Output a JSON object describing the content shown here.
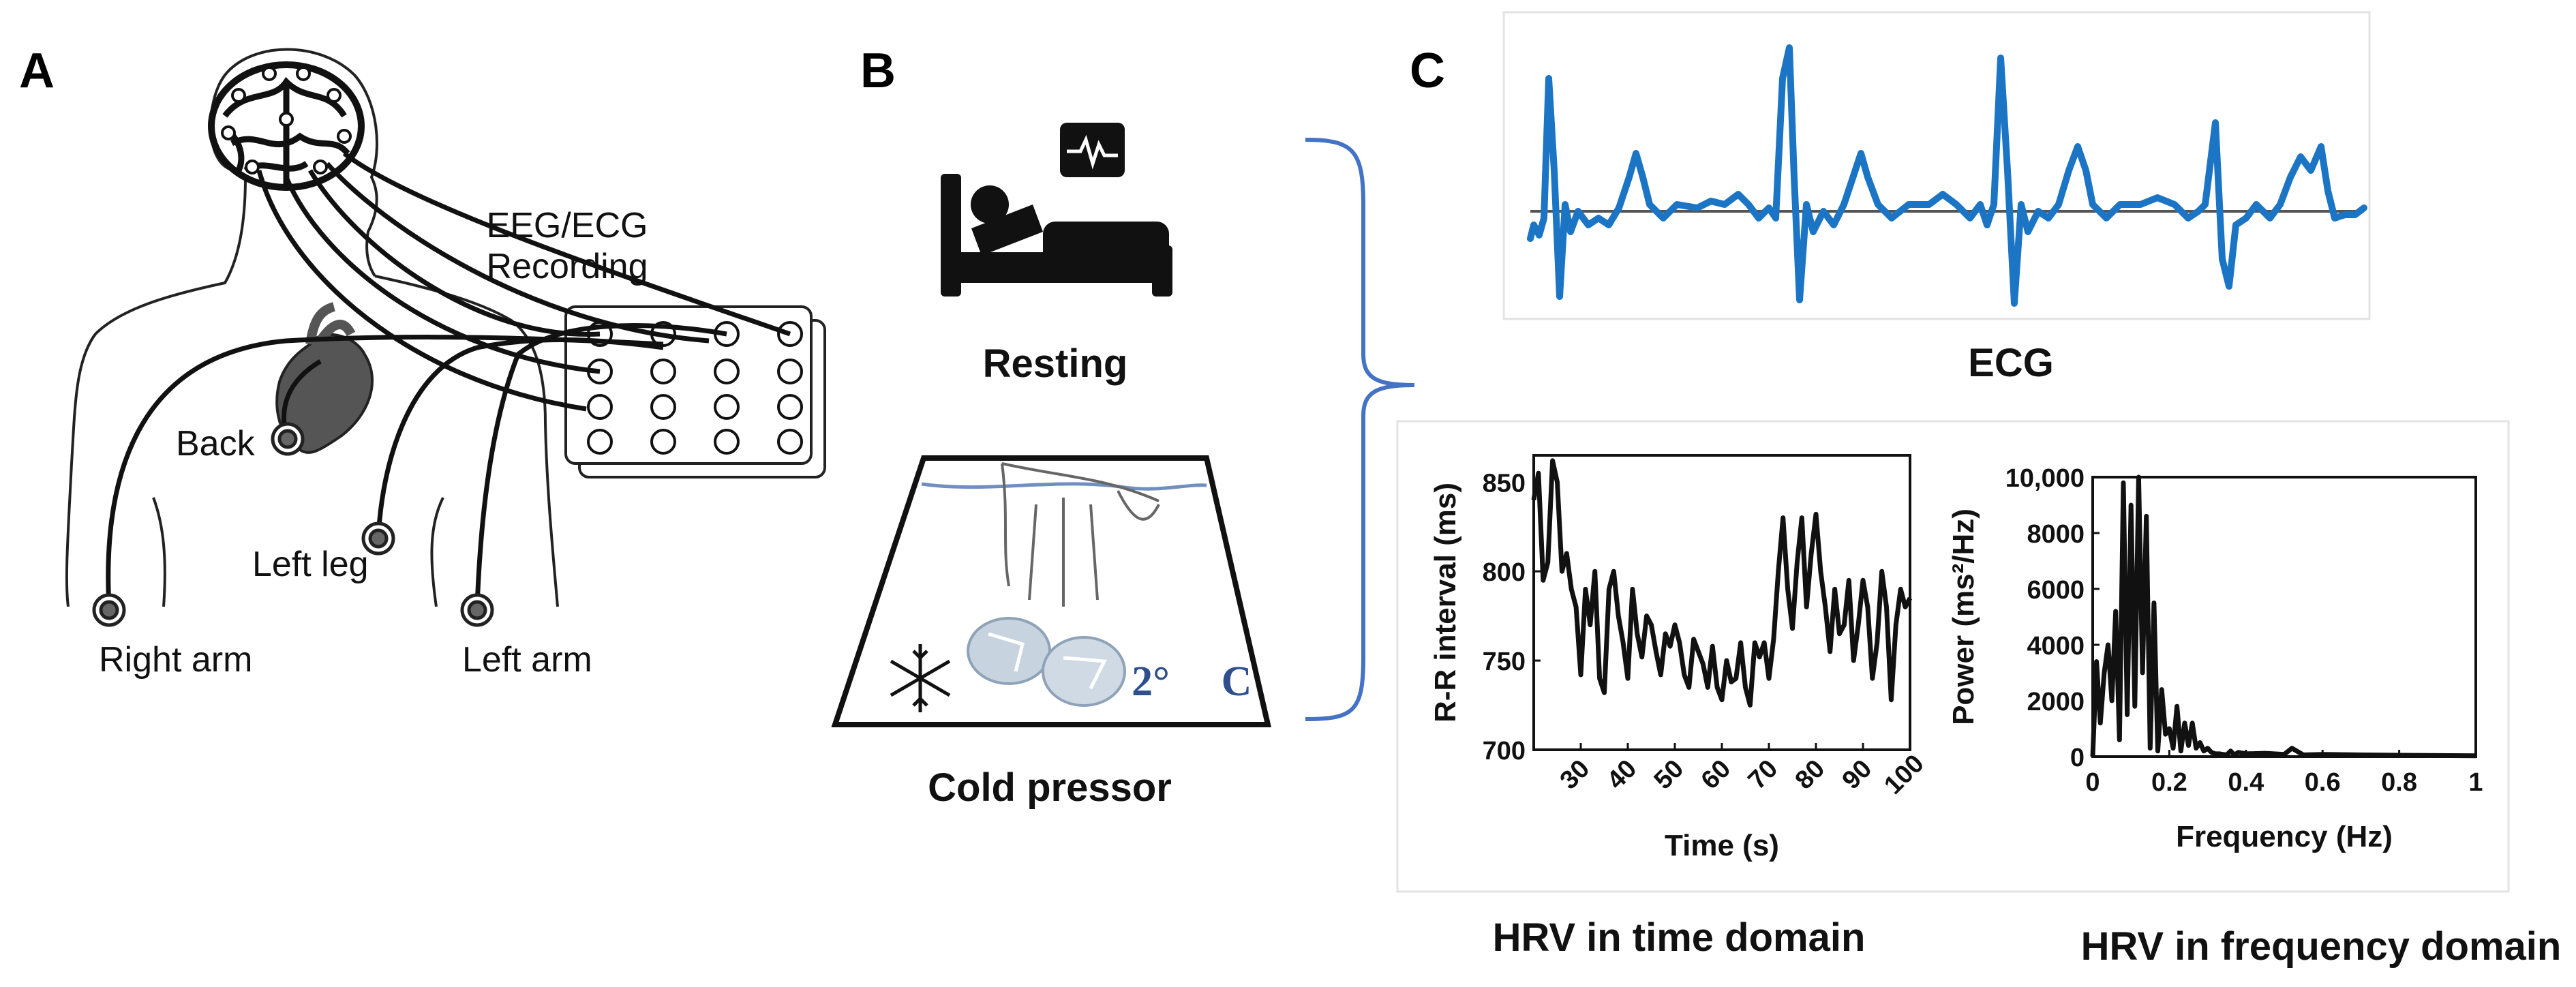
{
  "panels": {
    "a": {
      "letter": "A"
    },
    "b": {
      "letter": "B"
    },
    "c": {
      "letter": "C"
    }
  },
  "recording": {
    "line1": "EEG/ECG",
    "line2": "Recording"
  },
  "electrodes": {
    "back": "Back",
    "left_leg": "Left leg",
    "right_arm": "Right arm",
    "left_arm": "Left arm"
  },
  "conditions": {
    "resting": "Resting",
    "cold_pressor": "Cold pressor",
    "temperature_value": "2°",
    "temperature_unit": "C"
  },
  "labels": {
    "ecg": "ECG",
    "hrv_time": "HRV in time domain",
    "hrv_freq": "HRV in frequency domain"
  },
  "colors": {
    "ecg_line": "#1b75c4",
    "bracket": "#4472c4",
    "water": "#6f8fbf",
    "temperature": "#2f4e8c",
    "heart": "#555555"
  },
  "chart_data": [
    {
      "type": "line",
      "title": "HRV in time domain",
      "xlabel": "Time (s)",
      "ylabel": "R-R interval (ms)",
      "xlim": [
        20,
        100
      ],
      "ylim": [
        700,
        865
      ],
      "xticks": [
        "30",
        "40",
        "50",
        "60",
        "70",
        "80",
        "90",
        "100"
      ],
      "yticks": [
        "700",
        "750",
        "800",
        "850"
      ],
      "x": [
        20,
        21,
        22,
        23,
        24,
        25,
        26,
        27,
        28,
        29,
        30,
        31,
        32,
        33,
        34,
        35,
        36,
        37,
        38,
        39,
        40,
        41,
        42,
        43,
        44,
        45,
        46,
        47,
        48,
        49,
        50,
        51,
        52,
        53,
        54,
        55,
        56,
        57,
        58,
        59,
        60,
        61,
        62,
        63,
        64,
        65,
        66,
        67,
        68,
        69,
        70,
        71,
        72,
        73,
        74,
        75,
        76,
        77,
        78,
        79,
        80,
        81,
        82,
        83,
        84,
        85,
        86,
        87,
        88,
        89,
        90,
        91,
        92,
        93,
        94,
        95,
        96,
        97,
        98,
        99,
        100
      ],
      "y": [
        840,
        855,
        795,
        805,
        862,
        850,
        800,
        810,
        790,
        780,
        742,
        790,
        770,
        800,
        740,
        732,
        790,
        800,
        775,
        760,
        740,
        790,
        765,
        752,
        775,
        770,
        755,
        742,
        765,
        758,
        770,
        760,
        742,
        735,
        762,
        755,
        748,
        735,
        758,
        735,
        728,
        750,
        738,
        740,
        760,
        735,
        725,
        760,
        752,
        760,
        740,
        762,
        800,
        830,
        790,
        768,
        805,
        830,
        780,
        810,
        832,
        800,
        780,
        755,
        790,
        765,
        770,
        795,
        750,
        770,
        795,
        780,
        740,
        760,
        800,
        780,
        728,
        770,
        790,
        780,
        785
      ]
    },
    {
      "type": "line",
      "title": "HRV in frequency domain",
      "xlabel": "Frequency (Hz)",
      "ylabel": "Power (ms²/Hz)",
      "xlim": [
        0,
        1
      ],
      "ylim": [
        0,
        10000
      ],
      "xticks": [
        "0",
        "0.2",
        "0.4",
        "0.6",
        "0.8",
        "1"
      ],
      "yticks": [
        "0",
        "2000",
        "4000",
        "6000",
        "8000",
        "10,000"
      ],
      "x": [
        0.0,
        0.01,
        0.02,
        0.03,
        0.04,
        0.05,
        0.06,
        0.07,
        0.08,
        0.09,
        0.1,
        0.11,
        0.12,
        0.13,
        0.14,
        0.15,
        0.16,
        0.17,
        0.18,
        0.19,
        0.2,
        0.21,
        0.22,
        0.23,
        0.24,
        0.25,
        0.26,
        0.27,
        0.28,
        0.29,
        0.3,
        0.31,
        0.32,
        0.33,
        0.34,
        0.35,
        0.36,
        0.37,
        0.38,
        0.4,
        0.45,
        0.5,
        0.52,
        0.55,
        0.6,
        0.7,
        0.8,
        0.9,
        1.0
      ],
      "y": [
        0,
        3400,
        1200,
        3000,
        4000,
        2000,
        5200,
        600,
        9800,
        1500,
        9000,
        1800,
        10000,
        3000,
        8600,
        300,
        5500,
        200,
        2400,
        800,
        1000,
        300,
        1800,
        200,
        1200,
        400,
        1200,
        300,
        500,
        200,
        300,
        150,
        100,
        100,
        80,
        60,
        200,
        60,
        150,
        100,
        120,
        80,
        300,
        60,
        80,
        60,
        50,
        40,
        30
      ]
    }
  ]
}
